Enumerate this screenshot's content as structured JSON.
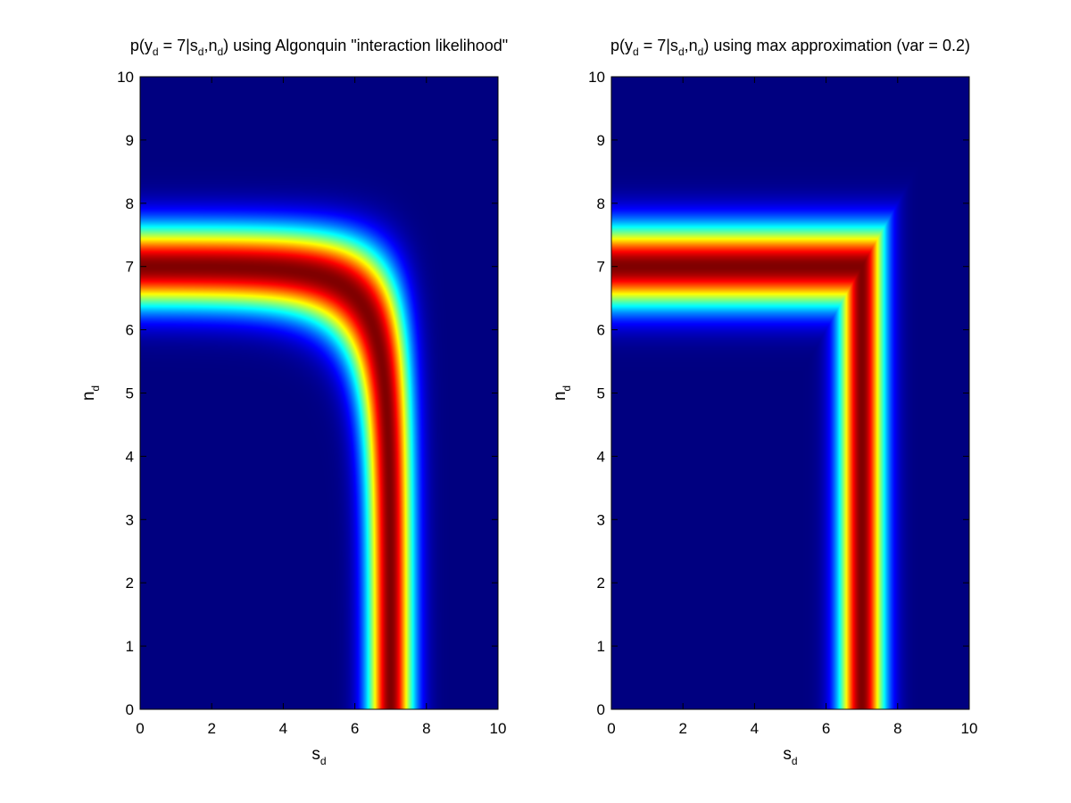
{
  "chart_data": [
    {
      "type": "heatmap",
      "title": {
        "segments": [
          {
            "text": "p(y",
            "sub": false
          },
          {
            "text": "d",
            "sub": true
          },
          {
            "text": " = 7|s",
            "sub": false
          },
          {
            "text": "d",
            "sub": true
          },
          {
            "text": ",n",
            "sub": false
          },
          {
            "text": "d",
            "sub": true
          },
          {
            "text": ") using Algonquin \"interaction likelihood\"",
            "sub": false
          }
        ]
      },
      "xlabel": {
        "main": "s",
        "sub": "d"
      },
      "ylabel": {
        "main": "n",
        "sub": "d"
      },
      "xlim": [
        0,
        10
      ],
      "ylim": [
        0,
        10
      ],
      "xticks": [
        "0",
        "2",
        "4",
        "6",
        "8",
        "10"
      ],
      "yticks": [
        "0",
        "1",
        "2",
        "3",
        "4",
        "5",
        "6",
        "7",
        "8",
        "9",
        "10"
      ],
      "model": "algonquin",
      "y_observed": 7,
      "variance": 0.2,
      "colormap": "jet",
      "grid": false
    },
    {
      "type": "heatmap",
      "title": {
        "segments": [
          {
            "text": "p(y",
            "sub": false
          },
          {
            "text": "d",
            "sub": true
          },
          {
            "text": " = 7|s",
            "sub": false
          },
          {
            "text": "d",
            "sub": true
          },
          {
            "text": ",n",
            "sub": false
          },
          {
            "text": "d",
            "sub": true
          },
          {
            "text": ") using max approximation (var = 0.2)",
            "sub": false
          }
        ]
      },
      "xlabel": {
        "main": "s",
        "sub": "d"
      },
      "ylabel": {
        "main": "n",
        "sub": "d"
      },
      "xlim": [
        0,
        10
      ],
      "ylim": [
        0,
        10
      ],
      "xticks": [
        "0",
        "2",
        "4",
        "6",
        "8",
        "10"
      ],
      "yticks": [
        "0",
        "1",
        "2",
        "3",
        "4",
        "5",
        "6",
        "7",
        "8",
        "9",
        "10"
      ],
      "model": "max",
      "y_observed": 7,
      "variance": 0.2,
      "colormap": "jet",
      "grid": false
    }
  ]
}
